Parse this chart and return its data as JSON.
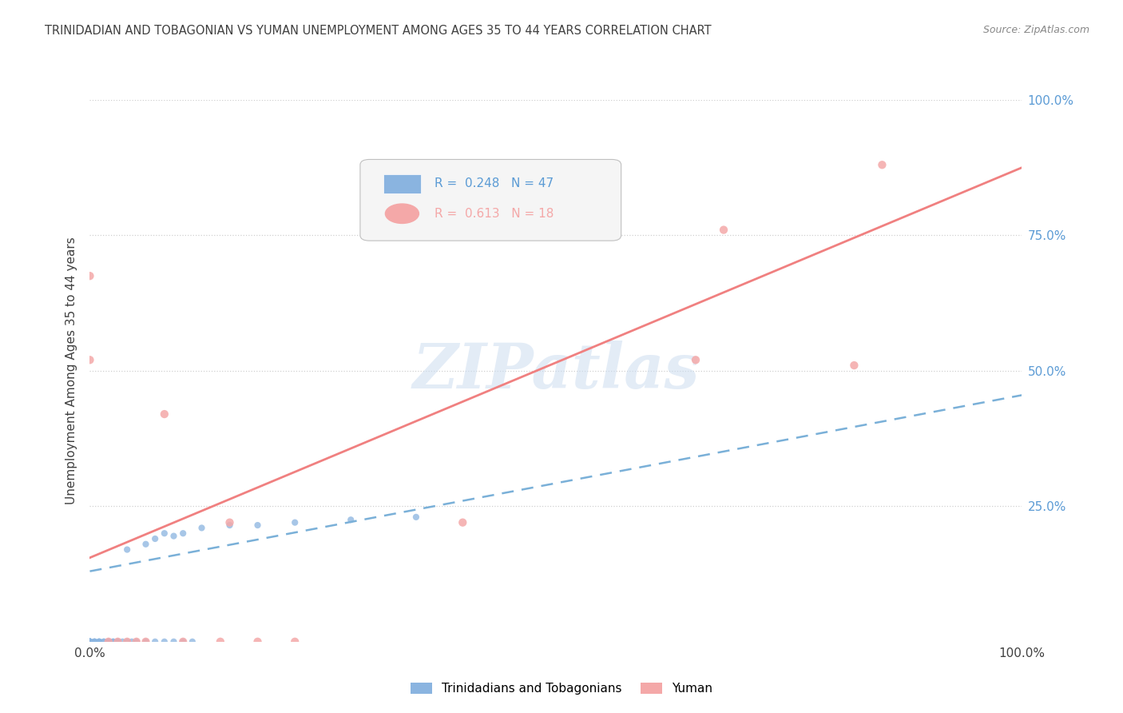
{
  "title": "TRINIDADIAN AND TOBAGONIAN VS YUMAN UNEMPLOYMENT AMONG AGES 35 TO 44 YEARS CORRELATION CHART",
  "source": "Source: ZipAtlas.com",
  "ylabel": "Unemployment Among Ages 35 to 44 years",
  "xlim": [
    0,
    1
  ],
  "ylim": [
    0,
    1
  ],
  "yticks": [
    0.0,
    0.25,
    0.5,
    0.75,
    1.0
  ],
  "ytick_labels": [
    "",
    "25.0%",
    "50.0%",
    "75.0%",
    "100.0%"
  ],
  "xtick_vals": [
    0.0,
    1.0
  ],
  "xtick_labels": [
    "0.0%",
    "100.0%"
  ],
  "watermark": "ZIPatlas",
  "legend_entries": [
    {
      "label": "Trinidadians and Tobagonians",
      "R": "0.248",
      "N": "47",
      "color": "#8ab4e0"
    },
    {
      "label": "Yuman",
      "R": "0.613",
      "N": "18",
      "color": "#f4a8a8"
    }
  ],
  "trinidadian_scatter": [
    [
      0.0,
      0.0
    ],
    [
      0.0,
      0.0
    ],
    [
      0.0,
      0.0
    ],
    [
      0.0,
      0.0
    ],
    [
      0.0,
      0.0
    ],
    [
      0.0,
      0.0
    ],
    [
      0.0,
      0.0
    ],
    [
      0.0,
      0.0
    ],
    [
      0.0,
      0.0
    ],
    [
      0.0,
      0.0
    ],
    [
      0.005,
      0.0
    ],
    [
      0.005,
      0.0
    ],
    [
      0.005,
      0.0
    ],
    [
      0.01,
      0.0
    ],
    [
      0.01,
      0.0
    ],
    [
      0.01,
      0.0
    ],
    [
      0.015,
      0.0
    ],
    [
      0.015,
      0.0
    ],
    [
      0.02,
      0.0
    ],
    [
      0.02,
      0.0
    ],
    [
      0.02,
      0.0
    ],
    [
      0.025,
      0.0
    ],
    [
      0.025,
      0.0
    ],
    [
      0.03,
      0.0
    ],
    [
      0.03,
      0.0
    ],
    [
      0.035,
      0.0
    ],
    [
      0.04,
      0.0
    ],
    [
      0.045,
      0.0
    ],
    [
      0.05,
      0.0
    ],
    [
      0.06,
      0.0
    ],
    [
      0.07,
      0.0
    ],
    [
      0.08,
      0.0
    ],
    [
      0.09,
      0.0
    ],
    [
      0.1,
      0.0
    ],
    [
      0.11,
      0.0
    ],
    [
      0.04,
      0.17
    ],
    [
      0.06,
      0.18
    ],
    [
      0.07,
      0.19
    ],
    [
      0.08,
      0.2
    ],
    [
      0.09,
      0.195
    ],
    [
      0.1,
      0.2
    ],
    [
      0.12,
      0.21
    ],
    [
      0.15,
      0.215
    ],
    [
      0.18,
      0.215
    ],
    [
      0.22,
      0.22
    ],
    [
      0.28,
      0.225
    ],
    [
      0.35,
      0.23
    ]
  ],
  "yuman_scatter": [
    [
      0.0,
      0.675
    ],
    [
      0.0,
      0.52
    ],
    [
      0.02,
      0.0
    ],
    [
      0.03,
      0.0
    ],
    [
      0.04,
      0.0
    ],
    [
      0.05,
      0.0
    ],
    [
      0.06,
      0.0
    ],
    [
      0.08,
      0.42
    ],
    [
      0.1,
      0.0
    ],
    [
      0.14,
      0.0
    ],
    [
      0.15,
      0.22
    ],
    [
      0.18,
      0.0
    ],
    [
      0.22,
      0.0
    ],
    [
      0.4,
      0.22
    ],
    [
      0.65,
      0.52
    ],
    [
      0.68,
      0.76
    ],
    [
      0.82,
      0.51
    ],
    [
      0.85,
      0.88
    ]
  ],
  "trinidadian_line": {
    "x": [
      0.0,
      1.0
    ],
    "y": [
      0.13,
      0.455
    ],
    "color": "#7ab0d8",
    "lw": 1.8
  },
  "yuman_line": {
    "x": [
      0.0,
      1.0
    ],
    "y": [
      0.155,
      0.875
    ],
    "color": "#f08080",
    "lw": 2.0
  },
  "background_color": "#ffffff",
  "grid_color": "#d0d0d0",
  "title_color": "#404040",
  "right_tick_color": "#5b9bd5"
}
